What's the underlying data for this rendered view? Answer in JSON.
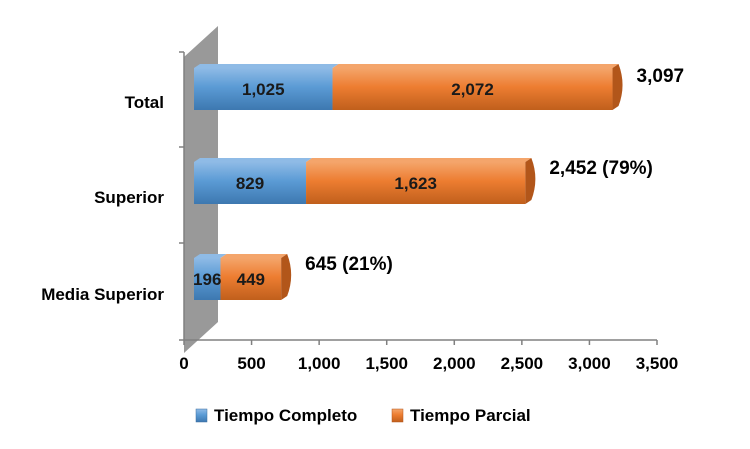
{
  "chart_data": {
    "type": "bar",
    "orientation": "horizontal",
    "stacked": true,
    "categories": [
      "Total",
      "Superior",
      "Media Superior"
    ],
    "series": [
      {
        "name": "Tiempo Completo",
        "values": [
          1025,
          829,
          196
        ],
        "labels": [
          "1,025",
          "829",
          "196"
        ],
        "color": "#5b9bd5"
      },
      {
        "name": "Tiempo Parcial",
        "values": [
          2072,
          1623,
          449
        ],
        "labels": [
          "2,072",
          "1,623",
          "449"
        ],
        "color": "#ed7d31"
      }
    ],
    "totals": [
      "3,097",
      "2,452 (79%)",
      "645 (21%)"
    ],
    "xlim": [
      0,
      3500
    ],
    "xticks": [
      0,
      500,
      1000,
      1500,
      2000,
      2500,
      3000,
      3500
    ],
    "xtick_labels": [
      "0",
      "500",
      "1,000",
      "1,500",
      "2,000",
      "2,500",
      "3,000",
      "3,500"
    ],
    "title": "",
    "xlabel": "",
    "ylabel": "",
    "grid": false,
    "legend_position": "bottom"
  }
}
